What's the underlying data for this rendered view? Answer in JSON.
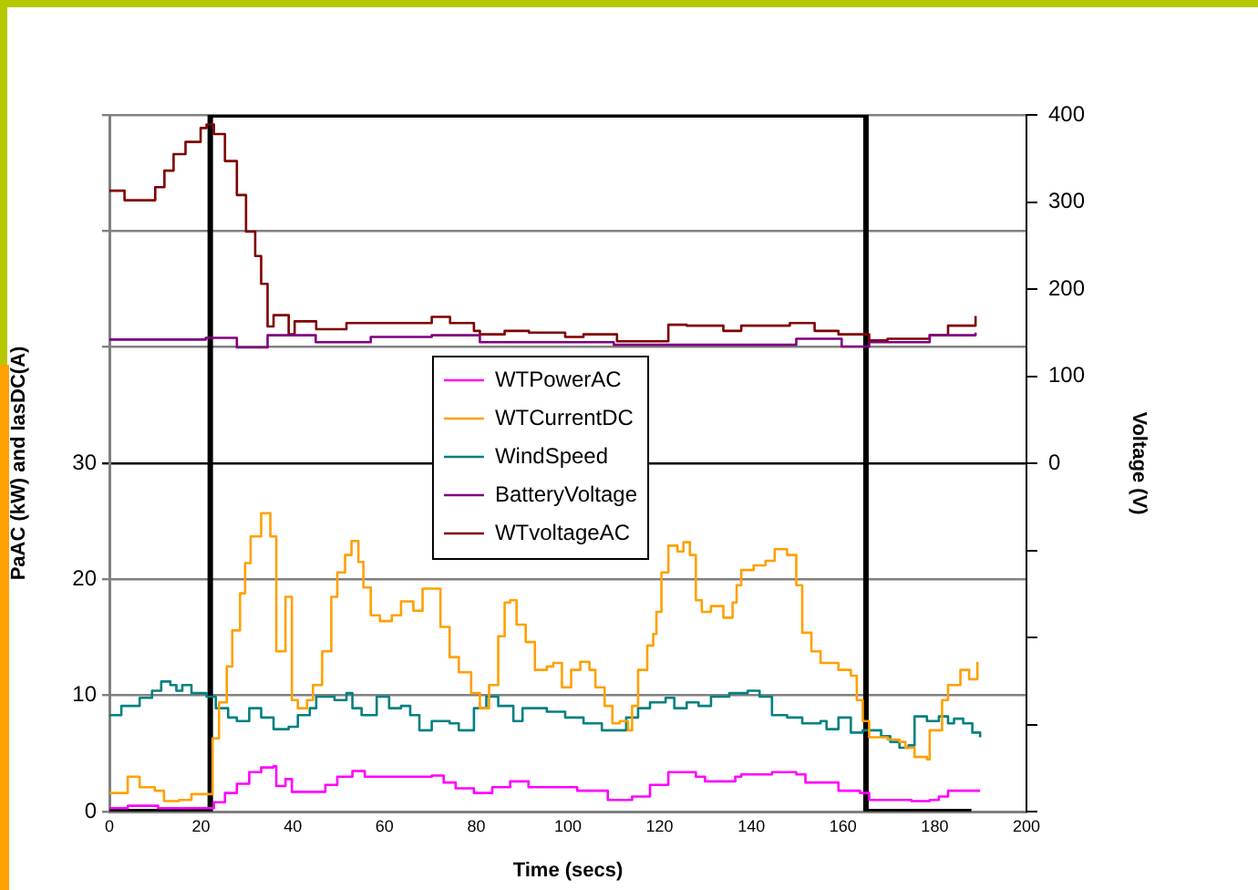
{
  "chart_data": {
    "type": "step",
    "xlabel": "Time (secs)",
    "ylabel": "PaAC (kW) and IasDC(A)",
    "y2label": "Voltage (V)",
    "xlim": [
      0,
      200
    ],
    "xticks": [
      0,
      20,
      40,
      60,
      80,
      100,
      120,
      140,
      160,
      180,
      200
    ],
    "ylim": [
      0,
      60
    ],
    "yticks": [
      0,
      10,
      20,
      30,
      {
        "value": 40,
        "label": null
      },
      {
        "value": 50,
        "label": null
      },
      {
        "value": 60,
        "label": null
      }
    ],
    "y2lim": [
      -400,
      400
    ],
    "y2ticks": [
      {
        "value": -400,
        "label": null
      },
      {
        "value": -300,
        "label": null
      },
      {
        "value": -200,
        "label": null
      },
      {
        "value": -100,
        "label": null
      },
      0,
      100,
      200,
      300,
      400
    ],
    "grid": "y",
    "legend": "center",
    "marker": "none",
    "series": [
      {
        "name": "WTPowerAC",
        "color": "#ff00ff",
        "x": [
          0,
          4,
          10.6,
          21.2,
          22.8,
          25.2,
          27.8,
          30.5,
          33.1,
          35.8,
          36.4,
          38.4,
          39.8,
          45.1,
          47.1,
          49.7,
          53,
          55.7,
          67.6,
          70.3,
          72.9,
          75.5,
          79.5,
          83.5,
          87.4,
          91.4,
          102,
          108.7,
          114,
          117.9,
          121.9,
          127.9,
          129.9,
          136.5,
          137.8,
          144.5,
          149.8,
          151.8,
          159,
          163.7,
          165.7,
          174.9,
          178.9,
          180.9,
          182.9,
          189.9
        ],
        "values": [
          0.3,
          0.5,
          0.3,
          0.3,
          0.8,
          1.6,
          2.4,
          3.4,
          3.8,
          3.9,
          2.2,
          2.8,
          1.7,
          1.7,
          2.3,
          3.0,
          3.5,
          3.0,
          3.0,
          3.1,
          2.5,
          2.0,
          1.6,
          2.1,
          2.6,
          2.1,
          1.8,
          1.0,
          1.3,
          2.3,
          3.4,
          3.0,
          2.6,
          3.0,
          3.2,
          3.4,
          3.2,
          2.5,
          1.8,
          1.6,
          1.0,
          0.9,
          1.0,
          1.3,
          1.8,
          1.8
        ]
      },
      {
        "name": "WTCurrentDC",
        "color": "#ffa000",
        "x": [
          0,
          4,
          6.6,
          9.9,
          11.9,
          15.2,
          17.9,
          21.2,
          22.5,
          23.9,
          25.6,
          26.8,
          28.5,
          29.6,
          30.8,
          33.1,
          35.1,
          36.4,
          38.4,
          39.8,
          41.1,
          43.1,
          44.4,
          46.4,
          48.4,
          49.7,
          51.4,
          52.8,
          54.3,
          55.4,
          57,
          59,
          61.6,
          63.6,
          66.3,
          68.3,
          70.3,
          72.2,
          74.2,
          76.2,
          78.9,
          80.8,
          82.8,
          84.8,
          86.2,
          87.4,
          88.8,
          90.8,
          92.8,
          95.4,
          96.8,
          98.7,
          100.7,
          102.7,
          104.7,
          106,
          108,
          109.7,
          111.3,
          113.1,
          114,
          115.3,
          117.3,
          118.6,
          119.3,
          120.4,
          121.9,
          123.9,
          125.2,
          126.6,
          127.9,
          129.2,
          131.2,
          133.9,
          135.9,
          136.8,
          137.8,
          140.5,
          143.1,
          145.1,
          147.8,
          149.8,
          151.1,
          153.1,
          155.1,
          159,
          161.7,
          163,
          164.3,
          165.7,
          169.7,
          172.3,
          173.6,
          175.6,
          178.3,
          178.9,
          181.6,
          182.9,
          185.6,
          187.5,
          189.3
        ],
        "values": [
          1.6,
          3.0,
          2.1,
          1.8,
          0.9,
          1.0,
          1.5,
          1.5,
          6.3,
          9.4,
          12.5,
          15.6,
          18.8,
          21.4,
          23.7,
          25.7,
          23.7,
          13.8,
          18.5,
          9.6,
          8.9,
          9.6,
          10.9,
          13.8,
          18.5,
          20.6,
          22.1,
          23.3,
          21.5,
          19.3,
          16.9,
          16.4,
          16.9,
          18.1,
          17.3,
          19.2,
          19.2,
          15.9,
          13.3,
          12.0,
          10.2,
          8.9,
          10.9,
          15.1,
          18.0,
          18.2,
          16.1,
          14.6,
          12.2,
          12.5,
          12.8,
          10.7,
          12.2,
          12.9,
          12.2,
          10.7,
          9.1,
          7.6,
          7.8,
          7.0,
          9.1,
          12.2,
          14.3,
          15.3,
          17.2,
          20.6,
          22.9,
          22.4,
          23.2,
          22.1,
          18.2,
          17.2,
          17.7,
          16.7,
          18.0,
          19.5,
          20.8,
          21.2,
          21.6,
          22.6,
          22.1,
          19.5,
          15.4,
          13.8,
          12.8,
          12.2,
          11.7,
          9.6,
          7.8,
          6.4,
          6.2,
          6.0,
          5.5,
          4.7,
          4.5,
          7.0,
          9.6,
          10.9,
          12.2,
          11.4,
          12.9
        ]
      },
      {
        "name": "WindSpeed",
        "color": "#008080",
        "x": [
          0,
          2.6,
          6.6,
          9.3,
          11.3,
          13.3,
          14.6,
          15.9,
          17.9,
          21.2,
          23.2,
          25.9,
          27.8,
          30.5,
          33.1,
          35.8,
          39.1,
          41.1,
          43.7,
          45.1,
          49.1,
          51.7,
          53,
          55,
          58.3,
          61,
          63.6,
          65.6,
          67.6,
          70.3,
          74.2,
          76.2,
          79.5,
          82.2,
          84.8,
          88.1,
          90.1,
          95.4,
          99.4,
          103.4,
          107.4,
          110.7,
          112.7,
          115.3,
          117.9,
          121.3,
          123.2,
          125.9,
          128.5,
          131.2,
          135.2,
          139.2,
          141.8,
          144.5,
          147.8,
          151.1,
          155.1,
          156.4,
          159,
          161.7,
          164.3,
          168.3,
          170.3,
          172.3,
          174.3,
          175.6,
          178.3,
          180.9,
          182.9,
          184.2,
          186.2,
          188.2,
          189.9
        ],
        "values": [
          8.3,
          9.1,
          9.8,
          10.4,
          11.2,
          10.9,
          10.4,
          10.9,
          10.2,
          9.9,
          8.9,
          8.1,
          7.8,
          8.9,
          8.1,
          7.1,
          7.3,
          8.3,
          8.9,
          9.9,
          9.6,
          10.2,
          8.9,
          8.3,
          9.9,
          8.9,
          9.1,
          8.3,
          7.0,
          7.8,
          7.6,
          7.0,
          8.9,
          9.9,
          9.1,
          7.8,
          8.9,
          8.6,
          8.1,
          7.6,
          7.0,
          7.0,
          8.1,
          8.9,
          9.4,
          9.8,
          8.9,
          9.4,
          9.1,
          9.9,
          10.2,
          10.4,
          9.9,
          8.3,
          8.1,
          7.6,
          7.8,
          7.1,
          8.1,
          6.8,
          7.0,
          6.5,
          6.0,
          5.5,
          5.7,
          8.2,
          7.8,
          8.2,
          7.6,
          8.0,
          7.6,
          6.8,
          6.4
        ]
      },
      {
        "name": "BatteryVoltage",
        "color": "#800080",
        "axis": "y2",
        "x": [
          0,
          21,
          27.8,
          34.5,
          45,
          57,
          70.3,
          80.8,
          91.5,
          110,
          130,
          149.8,
          159.7,
          165.7,
          178.9,
          188.9
        ],
        "values": [
          142,
          144,
          133,
          147,
          139,
          145,
          147,
          139,
          139,
          136,
          136,
          143,
          134,
          139,
          147,
          150
        ]
      },
      {
        "name": "WTvoltageAC",
        "color": "#800000",
        "axis": "y2",
        "x": [
          0,
          3.3,
          10,
          12,
          14,
          16.6,
          19.9,
          21.2,
          22.8,
          25.2,
          27.8,
          29.8,
          31.8,
          33.1,
          34.5,
          35.8,
          38.4,
          39.1,
          40.4,
          45.1,
          51.7,
          62.3,
          70.3,
          74.3,
          79.5,
          80.8,
          86.2,
          91.5,
          99.4,
          103.4,
          110.7,
          121.9,
          125.9,
          133.9,
          137.8,
          148.4,
          153.8,
          159,
          165.7,
          169.7,
          178.9,
          182.9,
          188.9
        ],
        "values": [
          313,
          302,
          317,
          336,
          355,
          369,
          385,
          389,
          378,
          347,
          308,
          266,
          238,
          206,
          157,
          170,
          170,
          148,
          163,
          154,
          161,
          161,
          168,
          161,
          152,
          148,
          152,
          150,
          145,
          148,
          140,
          159,
          158,
          152,
          158,
          161,
          152,
          148,
          141,
          143,
          147,
          158,
          169
        ]
      },
      {
        "type": "line",
        "color": "#000000",
        "x": [
          0,
          22,
          22,
          165,
          165,
          188
        ],
        "values": [
          0,
          0,
          60,
          60,
          0,
          0
        ]
      }
    ]
  }
}
